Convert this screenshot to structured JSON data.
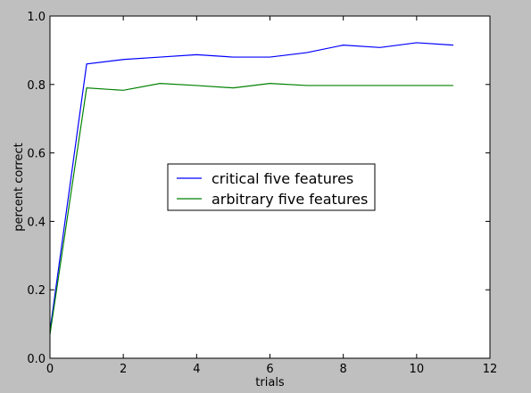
{
  "chart_data": {
    "type": "line",
    "title": "",
    "xlabel": "trials",
    "ylabel": "percent correct",
    "xlim": [
      0,
      12
    ],
    "ylim": [
      0.0,
      1.0
    ],
    "xticks": [
      0,
      2,
      4,
      6,
      8,
      10,
      12
    ],
    "xtick_labels": [
      "0",
      "2",
      "4",
      "6",
      "8",
      "10",
      "12"
    ],
    "yticks": [
      0.0,
      0.2,
      0.4,
      0.6,
      0.8,
      1.0
    ],
    "ytick_labels": [
      "0.0",
      "0.2",
      "0.4",
      "0.6",
      "0.8",
      "1.0"
    ],
    "grid": false,
    "legend_position": "center",
    "x": [
      0,
      1,
      2,
      3,
      4,
      5,
      6,
      7,
      8,
      9,
      10,
      11
    ],
    "series": [
      {
        "name": "critical five features",
        "color": "#0000ff",
        "values": [
          0.08,
          0.86,
          0.873,
          0.88,
          0.887,
          0.88,
          0.88,
          0.893,
          0.915,
          0.908,
          0.922,
          0.915
        ]
      },
      {
        "name": "arbitrary five features",
        "color": "#008000",
        "values": [
          0.07,
          0.79,
          0.783,
          0.803,
          0.797,
          0.79,
          0.803,
          0.797,
          0.797,
          0.797,
          0.797,
          0.797
        ]
      }
    ]
  },
  "colors": {
    "figure_background": "#bfbfbf",
    "axes_background": "#ffffff"
  }
}
